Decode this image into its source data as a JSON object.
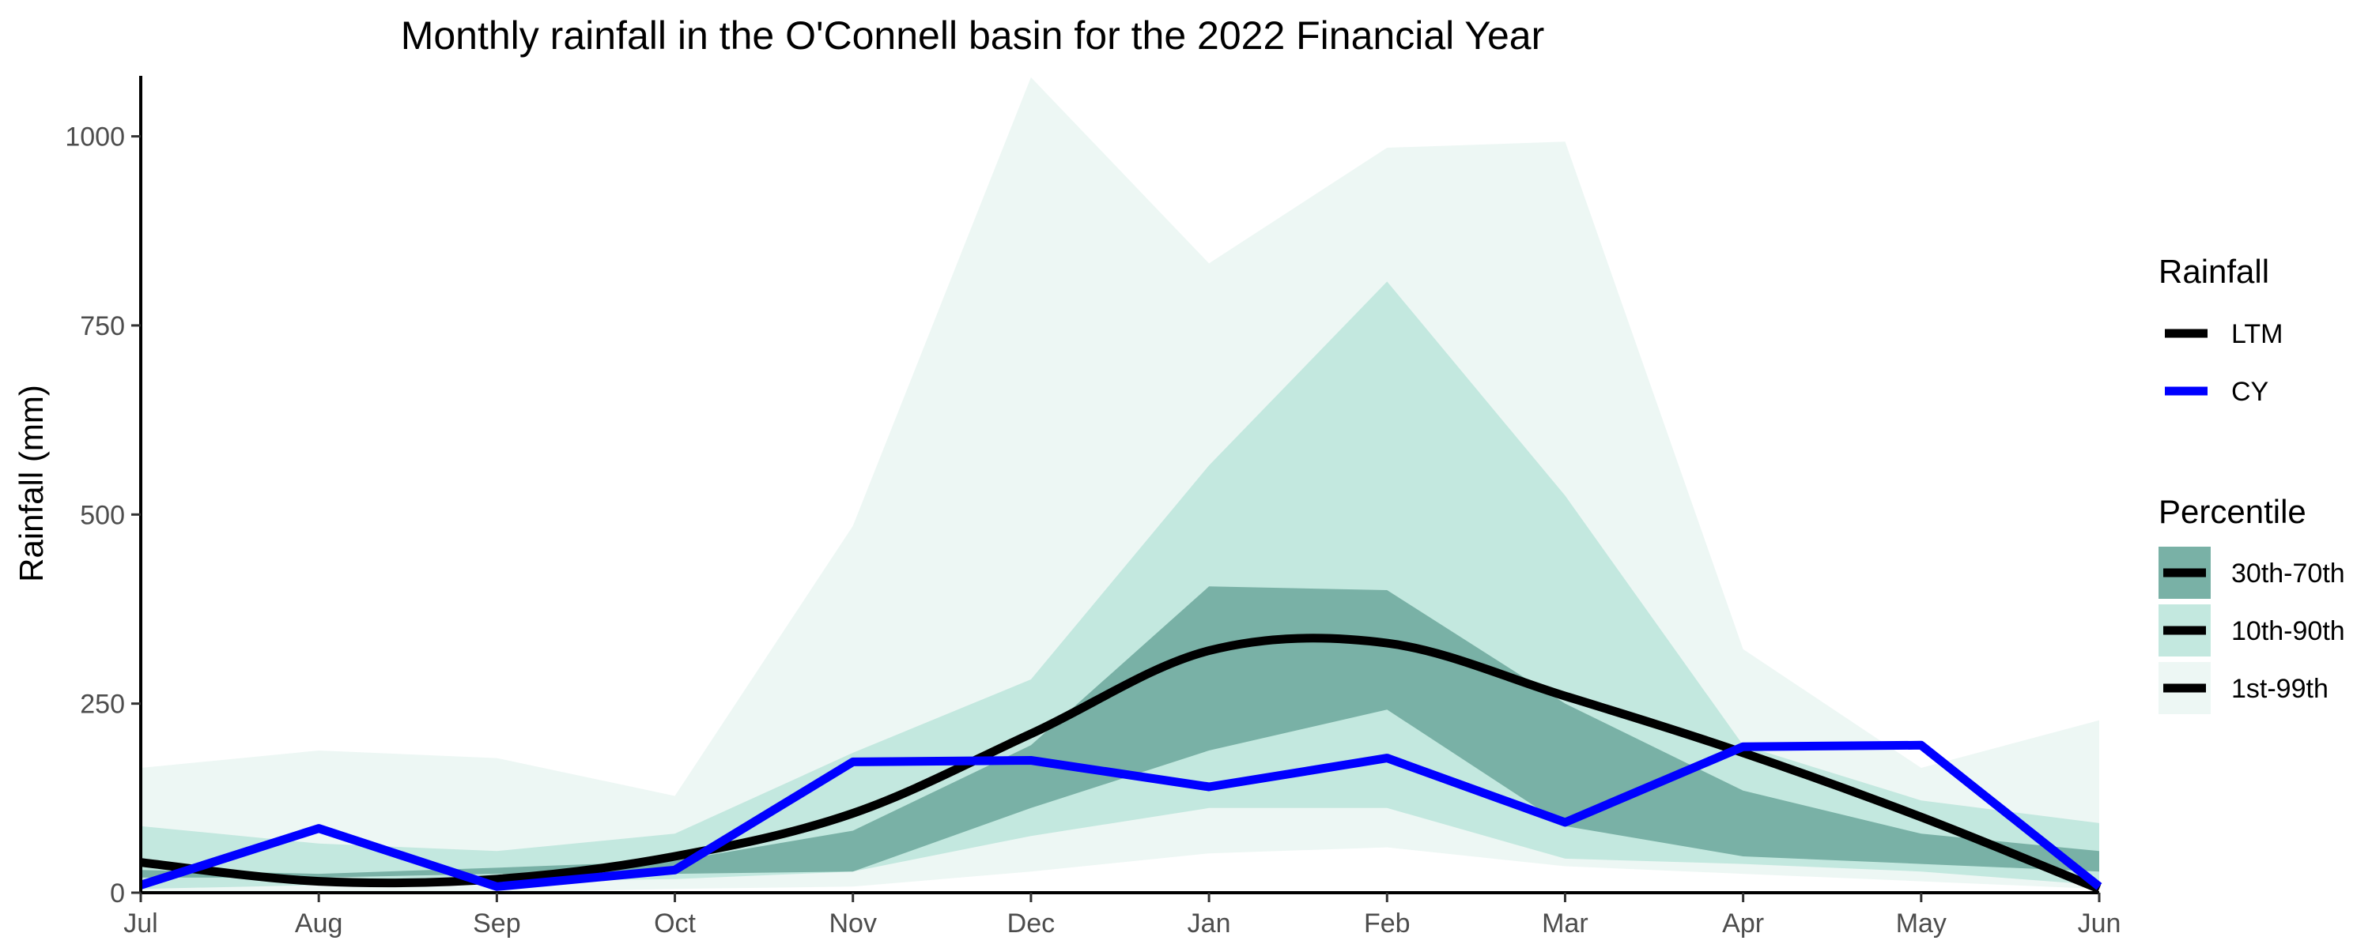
{
  "chart_data": {
    "type": "area",
    "title": "Monthly rainfall in the O'Connell basin for the 2022 Financial Year",
    "xlabel": "",
    "ylabel": "Rainfall (mm)",
    "categories": [
      "Jul",
      "Aug",
      "Sep",
      "Oct",
      "Nov",
      "Dec",
      "Jan",
      "Feb",
      "Mar",
      "Apr",
      "May",
      "Jun"
    ],
    "ylim": [
      0,
      1080
    ],
    "yticks": [
      0,
      250,
      500,
      750,
      1000
    ],
    "ytick_labels": [
      "0",
      "250",
      "500",
      "750",
      "1000"
    ],
    "grid": false,
    "legend_position": "right",
    "bands": [
      {
        "name": "1st-99th",
        "color": "#edf7f4",
        "lower": [
          0,
          0,
          0,
          5,
          8,
          28,
          52,
          60,
          35,
          25,
          15,
          5
        ],
        "upper": [
          165,
          188,
          178,
          128,
          485,
          1078,
          832,
          985,
          993,
          322,
          165,
          228
        ]
      },
      {
        "name": "10th-90th",
        "color": "#c3e8df",
        "lower": [
          5,
          10,
          15,
          18,
          28,
          75,
          112,
          112,
          45,
          38,
          28,
          10
        ],
        "upper": [
          88,
          65,
          55,
          78,
          185,
          282,
          565,
          808,
          525,
          195,
          122,
          92
        ]
      },
      {
        "name": "30th-70th",
        "color": "#79b1a6",
        "lower": [
          20,
          20,
          25,
          25,
          28,
          112,
          188,
          242,
          88,
          48,
          38,
          28
        ],
        "upper": [
          30,
          25,
          33,
          42,
          82,
          195,
          405,
          400,
          250,
          135,
          78,
          55
        ]
      }
    ],
    "series": [
      {
        "name": "LTM",
        "color": "#000000",
        "values": [
          40,
          15,
          18,
          48,
          105,
          210,
          320,
          330,
          260,
          185,
          100,
          5
        ]
      },
      {
        "name": "CY",
        "color": "#0000ff",
        "values": [
          10,
          85,
          8,
          30,
          173,
          175,
          140,
          178,
          93,
          193,
          195,
          8
        ]
      }
    ],
    "legend": {
      "rainfall_title": "Rainfall",
      "rainfall_items": [
        {
          "label": "LTM",
          "color": "#000000"
        },
        {
          "label": "CY",
          "color": "#0000ff"
        }
      ],
      "percentile_title": "Percentile",
      "percentile_items": [
        {
          "label": "30th-70th",
          "color": "#79b1a6"
        },
        {
          "label": "10th-90th",
          "color": "#c3e8df"
        },
        {
          "label": "1st-99th",
          "color": "#edf7f4"
        }
      ]
    }
  }
}
